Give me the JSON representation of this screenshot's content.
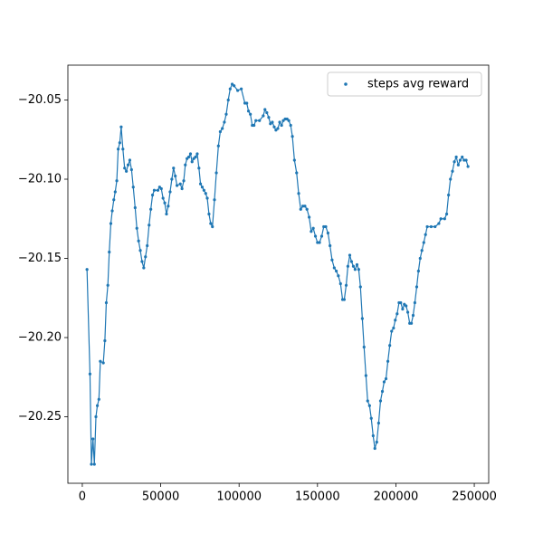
{
  "chart_data": {
    "type": "line",
    "markers": true,
    "color": "#1f77b4",
    "legend": "upper right",
    "xlim": [
      -9200,
      259200
    ],
    "ylim": [
      -20.292,
      -20.028
    ],
    "xticks": [
      0,
      50000,
      100000,
      150000,
      200000,
      250000
    ],
    "yticks": [
      {
        "value": -20.25,
        "label": "−20.25"
      },
      {
        "value": -20.2,
        "label": "−20.20"
      },
      {
        "value": -20.15,
        "label": "−20.15"
      },
      {
        "value": -20.1,
        "label": "−20.10"
      },
      {
        "value": -20.05,
        "label": "−20.05"
      }
    ],
    "series": [
      {
        "name": "steps avg reward",
        "color": "#1f77b4",
        "x": [
          3000,
          4900,
          5800,
          6800,
          7700,
          8700,
          9600,
          10600,
          11500,
          13400,
          14400,
          15300,
          16300,
          17200,
          18200,
          19100,
          20100,
          21000,
          22000,
          22900,
          23900,
          24800,
          25900,
          27000,
          28100,
          29200,
          30300,
          31400,
          32500,
          33700,
          34800,
          35900,
          37000,
          38100,
          39200,
          40300,
          41400,
          42600,
          43700,
          44800,
          45900,
          48200,
          49300,
          50400,
          51500,
          52600,
          53700,
          54800,
          56000,
          57100,
          58200,
          59300,
          60400,
          62500,
          63600,
          64700,
          65700,
          66800,
          67900,
          69000,
          70000,
          71100,
          72200,
          73300,
          74400,
          75400,
          76500,
          77600,
          78700,
          79700,
          80800,
          81900,
          83000,
          84300,
          85500,
          86800,
          88000,
          89300,
          90600,
          91800,
          93100,
          94300,
          95600,
          96800,
          99100,
          101400,
          103700,
          104900,
          106000,
          107200,
          108400,
          109500,
          110700,
          113000,
          115400,
          116500,
          117700,
          118900,
          120000,
          121200,
          122400,
          123500,
          124700,
          125900,
          127100,
          128200,
          129400,
          130600,
          131700,
          132900,
          134000,
          135300,
          136700,
          138000,
          139300,
          140700,
          142000,
          143300,
          144700,
          146000,
          147300,
          148700,
          150000,
          151300,
          152700,
          154000,
          155300,
          156700,
          158000,
          159300,
          160700,
          162000,
          163300,
          164700,
          166000,
          167100,
          168300,
          169400,
          170600,
          171700,
          172900,
          174000,
          175200,
          176300,
          177400,
          178600,
          179700,
          180900,
          182000,
          183200,
          184300,
          185500,
          186600,
          187800,
          189000,
          190200,
          191400,
          192500,
          193700,
          194900,
          196100,
          197300,
          198500,
          199600,
          200800,
          202000,
          203100,
          204300,
          205400,
          206500,
          207600,
          208800,
          209900,
          211000,
          212100,
          213300,
          214400,
          215500,
          216600,
          217800,
          218900,
          220000,
          222500,
          225000,
          227400,
          228700,
          231100,
          232400,
          233600,
          234800,
          236100,
          237300,
          238500,
          239800,
          241000,
          242300,
          243500,
          244800,
          246000
        ],
        "values": [
          -20.157,
          -20.223,
          -20.28,
          -20.264,
          -20.28,
          -20.25,
          -20.243,
          -20.239,
          -20.215,
          -20.216,
          -20.202,
          -20.178,
          -20.167,
          -20.146,
          -20.128,
          -20.12,
          -20.113,
          -20.108,
          -20.101,
          -20.081,
          -20.077,
          -20.067,
          -20.081,
          -20.093,
          -20.095,
          -20.091,
          -20.088,
          -20.094,
          -20.105,
          -20.118,
          -20.131,
          -20.139,
          -20.145,
          -20.152,
          -20.156,
          -20.149,
          -20.142,
          -20.129,
          -20.119,
          -20.11,
          -20.107,
          -20.107,
          -20.105,
          -20.106,
          -20.112,
          -20.115,
          -20.122,
          -20.117,
          -20.108,
          -20.1,
          -20.093,
          -20.098,
          -20.104,
          -20.103,
          -20.106,
          -20.101,
          -20.091,
          -20.087,
          -20.086,
          -20.084,
          -20.089,
          -20.087,
          -20.086,
          -20.084,
          -20.093,
          -20.103,
          -20.105,
          -20.107,
          -20.109,
          -20.112,
          -20.122,
          -20.128,
          -20.13,
          -20.113,
          -20.096,
          -20.079,
          -20.07,
          -20.068,
          -20.064,
          -20.059,
          -20.05,
          -20.043,
          -20.04,
          -20.041,
          -20.044,
          -20.043,
          -20.052,
          -20.052,
          -20.057,
          -20.059,
          -20.066,
          -20.066,
          -20.063,
          -20.063,
          -20.06,
          -20.056,
          -20.058,
          -20.061,
          -20.065,
          -20.064,
          -20.067,
          -20.069,
          -20.068,
          -20.064,
          -20.066,
          -20.063,
          -20.062,
          -20.062,
          -20.063,
          -20.066,
          -20.073,
          -20.088,
          -20.096,
          -20.109,
          -20.119,
          -20.117,
          -20.117,
          -20.119,
          -20.124,
          -20.133,
          -20.131,
          -20.136,
          -20.14,
          -20.14,
          -20.136,
          -20.13,
          -20.13,
          -20.134,
          -20.142,
          -20.151,
          -20.156,
          -20.158,
          -20.161,
          -20.166,
          -20.176,
          -20.176,
          -20.167,
          -20.155,
          -20.148,
          -20.152,
          -20.155,
          -20.157,
          -20.154,
          -20.157,
          -20.168,
          -20.188,
          -20.206,
          -20.224,
          -20.24,
          -20.243,
          -20.251,
          -20.262,
          -20.27,
          -20.266,
          -20.254,
          -20.24,
          -20.234,
          -20.228,
          -20.226,
          -20.215,
          -20.205,
          -20.196,
          -20.194,
          -20.189,
          -20.185,
          -20.178,
          -20.178,
          -20.182,
          -20.179,
          -20.18,
          -20.184,
          -20.191,
          -20.191,
          -20.186,
          -20.178,
          -20.168,
          -20.158,
          -20.15,
          -20.145,
          -20.14,
          -20.135,
          -20.13,
          -20.13,
          -20.13,
          -20.128,
          -20.125,
          -20.125,
          -20.122,
          -20.11,
          -20.1,
          -20.095,
          -20.089,
          -20.086,
          -20.091,
          -20.088,
          -20.086,
          -20.088,
          -20.088,
          -20.092
        ]
      }
    ]
  }
}
